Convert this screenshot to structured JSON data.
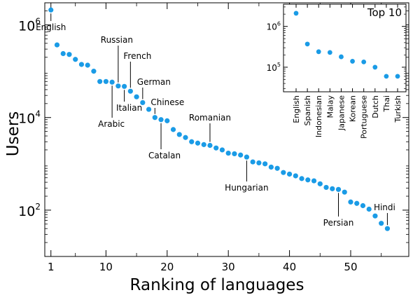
{
  "chart_data": [
    {
      "type": "scatter",
      "xlabel": "Ranking of languages",
      "ylabel": "Users",
      "xlim": [
        0,
        59.5
      ],
      "ylim": [
        10,
        3000000
      ],
      "yscale": "log",
      "xticks": [
        1,
        10,
        20,
        30,
        40,
        50
      ],
      "yticks": [
        {
          "value": 100,
          "base": "10",
          "exp": "2"
        },
        {
          "value": 10000,
          "base": "10",
          "exp": "4"
        },
        {
          "value": 1000000,
          "base": "10",
          "exp": "6"
        }
      ],
      "marker_color": "#1a9be6",
      "x": [
        1,
        2,
        3,
        4,
        5,
        6,
        7,
        8,
        9,
        10,
        11,
        12,
        13,
        14,
        15,
        16,
        17,
        18,
        19,
        20,
        21,
        22,
        23,
        24,
        25,
        26,
        27,
        28,
        29,
        30,
        31,
        32,
        33,
        34,
        35,
        36,
        37,
        38,
        39,
        40,
        41,
        42,
        43,
        44,
        45,
        46,
        47,
        48,
        49,
        50,
        51,
        52,
        53,
        54,
        55,
        56
      ],
      "values": [
        2100000,
        370000,
        240000,
        230000,
        180000,
        140000,
        135000,
        100000,
        60000,
        60000,
        58000,
        48000,
        47000,
        37000,
        28000,
        21000,
        15000,
        10000,
        9000,
        8500,
        5500,
        4300,
        3700,
        3000,
        2800,
        2600,
        2500,
        2200,
        2000,
        1700,
        1650,
        1550,
        1400,
        1100,
        1050,
        1000,
        850,
        800,
        650,
        600,
        550,
        480,
        450,
        430,
        370,
        310,
        290,
        280,
        245,
        150,
        140,
        125,
        105,
        75,
        52,
        40
      ],
      "annotations": [
        {
          "label": "English",
          "x": 1
        },
        {
          "label": "Russian",
          "x": 12
        },
        {
          "label": "French",
          "x": 14
        },
        {
          "label": "German",
          "x": 16
        },
        {
          "label": "Chinese",
          "x": 18
        },
        {
          "label": "Arabic",
          "x": 11
        },
        {
          "label": "Italian",
          "x": 13
        },
        {
          "label": "Catalan",
          "x": 19
        },
        {
          "label": "Romanian",
          "x": 27
        },
        {
          "label": "Hungarian",
          "x": 33
        },
        {
          "label": "Persian",
          "x": 48
        },
        {
          "label": "Hindi",
          "x": 56
        }
      ]
    },
    {
      "type": "scatter",
      "title": "Top 10",
      "yscale": "log",
      "ylim": [
        25000,
        3500000
      ],
      "yticks": [
        {
          "value": 100000,
          "base": "10",
          "exp": "5"
        },
        {
          "value": 1000000,
          "base": "10",
          "exp": "6"
        }
      ],
      "marker_color": "#1a9be6",
      "categories": [
        "English",
        "Spanish",
        "Indonesian",
        "Malay",
        "Japanese",
        "Korean",
        "Portuguese",
        "Dutch",
        "Thai",
        "Turkish"
      ],
      "values": [
        2100000,
        370000,
        240000,
        230000,
        180000,
        140000,
        135000,
        100000,
        60000,
        60000
      ]
    }
  ]
}
